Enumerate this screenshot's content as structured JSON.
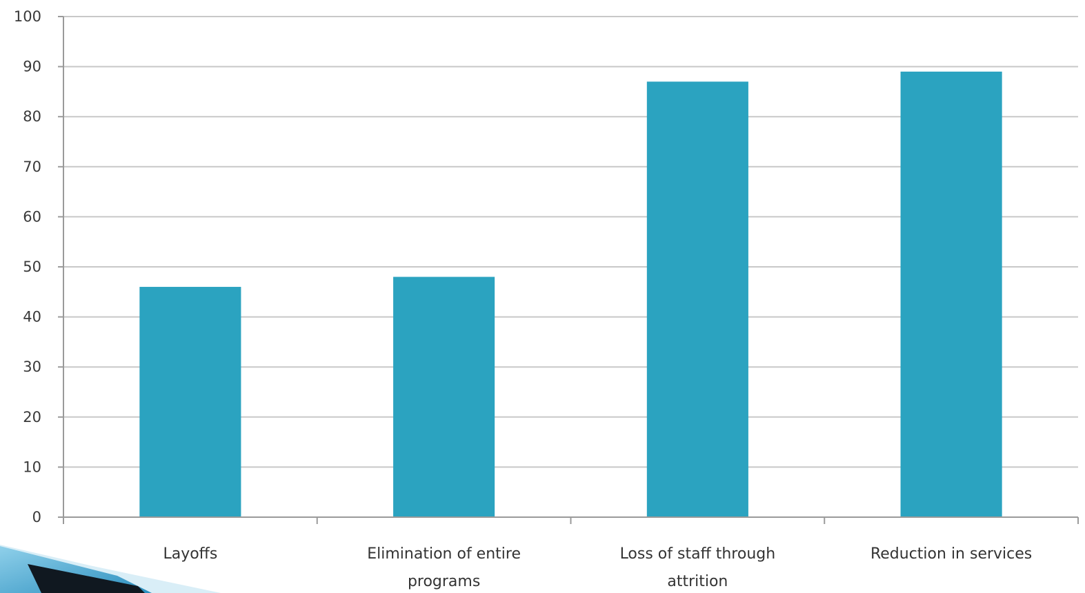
{
  "chart_data": {
    "type": "bar",
    "categories": [
      [
        "Layoffs"
      ],
      [
        "Elimination of entire",
        "programs"
      ],
      [
        "Loss of staff through",
        "attrition"
      ],
      [
        "Reduction in services"
      ]
    ],
    "values": [
      46,
      48,
      87,
      89
    ],
    "ylim": [
      0,
      100
    ],
    "yticks": [
      0,
      10,
      20,
      30,
      40,
      50,
      60,
      70,
      80,
      90,
      100
    ],
    "grid": true,
    "legend": "none",
    "bar_color": "#2ba3c0",
    "grid_color": "#c8c8c8",
    "axis_color": "#9a9a9a"
  }
}
